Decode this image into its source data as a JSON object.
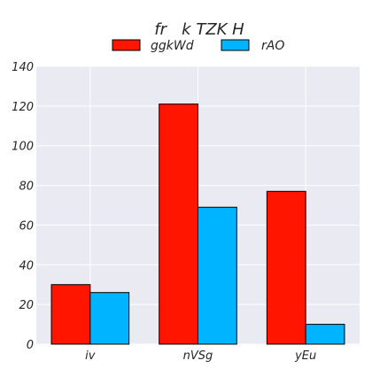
{
  "chart_data": {
    "type": "bar",
    "title": "fr   k TZK H",
    "categories": [
      "iv",
      "nVSg",
      "yEu"
    ],
    "series": [
      {
        "name": "ggkWd",
        "values": [
          30,
          121,
          77
        ],
        "color": "#ff1500"
      },
      {
        "name": "rAO",
        "values": [
          26,
          69,
          10
        ],
        "color": "#00b4ff"
      }
    ],
    "xlabel": "",
    "ylabel": "",
    "ylim": [
      0,
      140
    ],
    "yticks": [
      0,
      20,
      40,
      60,
      80,
      100,
      120,
      140
    ],
    "grid": true,
    "legend_position": "top-center",
    "plot_background": "#eaeaf2",
    "grid_color": "#ffffff"
  }
}
